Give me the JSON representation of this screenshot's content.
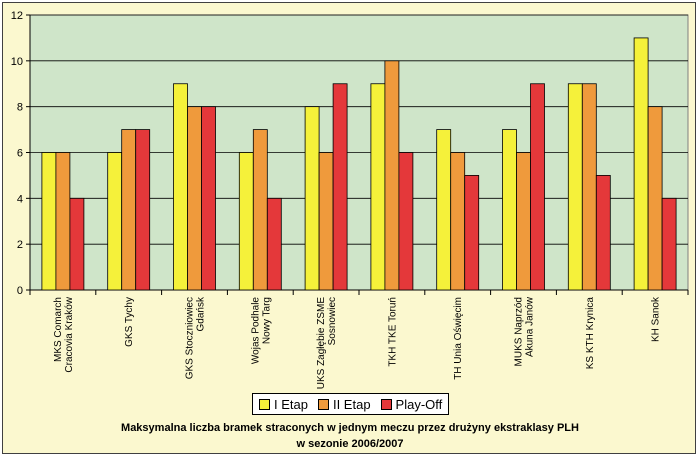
{
  "chart_data": {
    "type": "bar",
    "title_line1": "Maksymalna liczba bramek straconych w jednym meczu przez drużyny ekstraklasy PLH",
    "title_line2": "w sezonie 2006/2007",
    "categories": [
      [
        "MKS Comarch",
        "Cracovia Kraków"
      ],
      [
        "GKS Tychy"
      ],
      [
        "GKS Stoczniowiec",
        "Gdańsk"
      ],
      [
        "Wojas Podhale",
        "Nowy Targ"
      ],
      [
        "UKS Zagłębie ZSME",
        "Sosnowiec"
      ],
      [
        "TKH TKE Toruń"
      ],
      [
        "TH Unia Oświęcim"
      ],
      [
        "MUKS Naprzód",
        "Akuna Janów"
      ],
      [
        "KS KTH Krynica"
      ],
      [
        "KH Sanok"
      ]
    ],
    "series": [
      {
        "name": "I Etap",
        "color": "#f5f13a",
        "values": [
          6,
          6,
          9,
          6,
          8,
          9,
          7,
          7,
          9,
          11
        ]
      },
      {
        "name": "II Etap",
        "color": "#ef9a3c",
        "values": [
          6,
          7,
          8,
          7,
          6,
          10,
          6,
          6,
          9,
          8
        ]
      },
      {
        "name": "Play-Off",
        "color": "#e4383a",
        "values": [
          4,
          7,
          8,
          4,
          9,
          6,
          5,
          9,
          5,
          4
        ]
      }
    ],
    "ylim": [
      0,
      12
    ],
    "yticks": [
      0,
      2,
      4,
      6,
      8,
      10,
      12
    ],
    "grid": true,
    "legend_position": "bottom"
  }
}
